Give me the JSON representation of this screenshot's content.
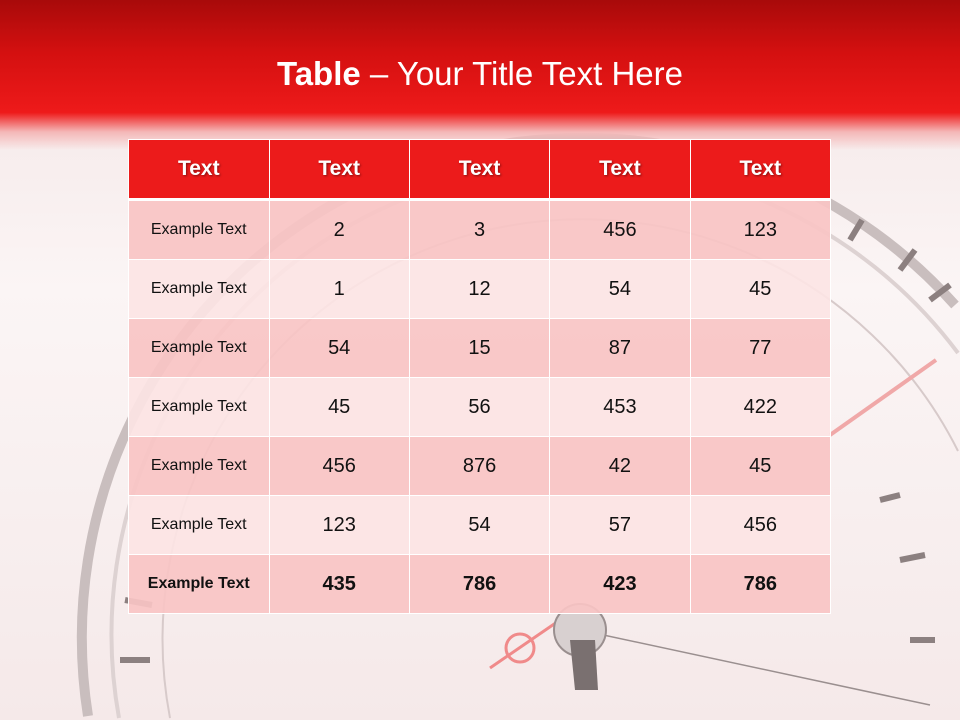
{
  "title": {
    "bold": "Table",
    "rest": " – Your Title Text Here"
  },
  "table": {
    "headers": [
      "Text",
      "Text",
      "Text",
      "Text",
      "Text"
    ],
    "rows": [
      [
        "Example Text",
        "2",
        "3",
        "456",
        "123"
      ],
      [
        "Example Text",
        "1",
        "12",
        "54",
        "45"
      ],
      [
        "Example Text",
        "54",
        "15",
        "87",
        "77"
      ],
      [
        "Example Text",
        "45",
        "56",
        "453",
        "422"
      ],
      [
        "Example Text",
        "456",
        "876",
        "42",
        "45"
      ],
      [
        "Example Text",
        "123",
        "54",
        "57",
        "456"
      ],
      [
        "Example Text",
        "435",
        "786",
        "423",
        "786"
      ]
    ]
  },
  "colors": {
    "accent": "#ec1b1b",
    "row_dark": "#f8c4c4",
    "row_light": "#fce4e4"
  }
}
